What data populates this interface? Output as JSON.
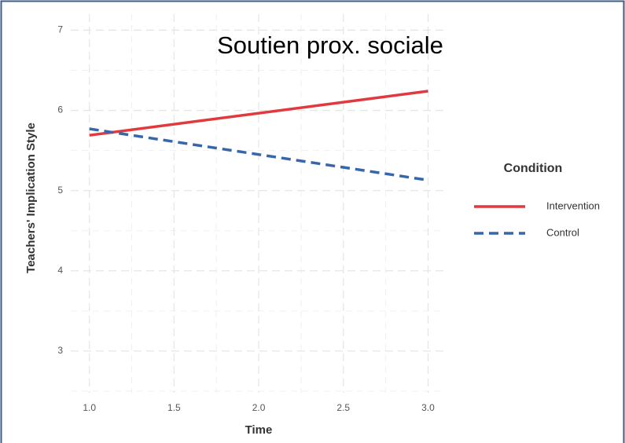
{
  "chart_data": {
    "type": "line",
    "title": "Soutien prox. sociale",
    "x_label": "Time",
    "y_label": "Teachers' Implication Style",
    "x": [
      1.0,
      3.0
    ],
    "series": [
      {
        "name": "Intervention",
        "color": "#e0393e",
        "dash": "solid",
        "values": [
          5.69,
          6.24
        ]
      },
      {
        "name": "Control",
        "color": "#3766aa",
        "dash": "dashed",
        "values": [
          5.77,
          5.13
        ]
      }
    ],
    "xlim": [
      0.89,
      3.1
    ],
    "xticks": [
      {
        "value": 1,
        "label": "1.0"
      },
      1.5,
      {
        "value": 2,
        "label": "2.0"
      },
      2.5,
      {
        "value": 3,
        "label": "3.0"
      }
    ],
    "xminor": [
      1.25,
      1.75,
      2.25,
      2.75
    ],
    "ylim": [
      2.48,
      7.2
    ],
    "yticks": [
      3,
      4,
      5,
      6,
      7
    ],
    "yminor": [
      2.5,
      3.5,
      4.5,
      5.5,
      6.5
    ],
    "grid": true,
    "legend_title": "Condition",
    "legend_position": "right"
  }
}
